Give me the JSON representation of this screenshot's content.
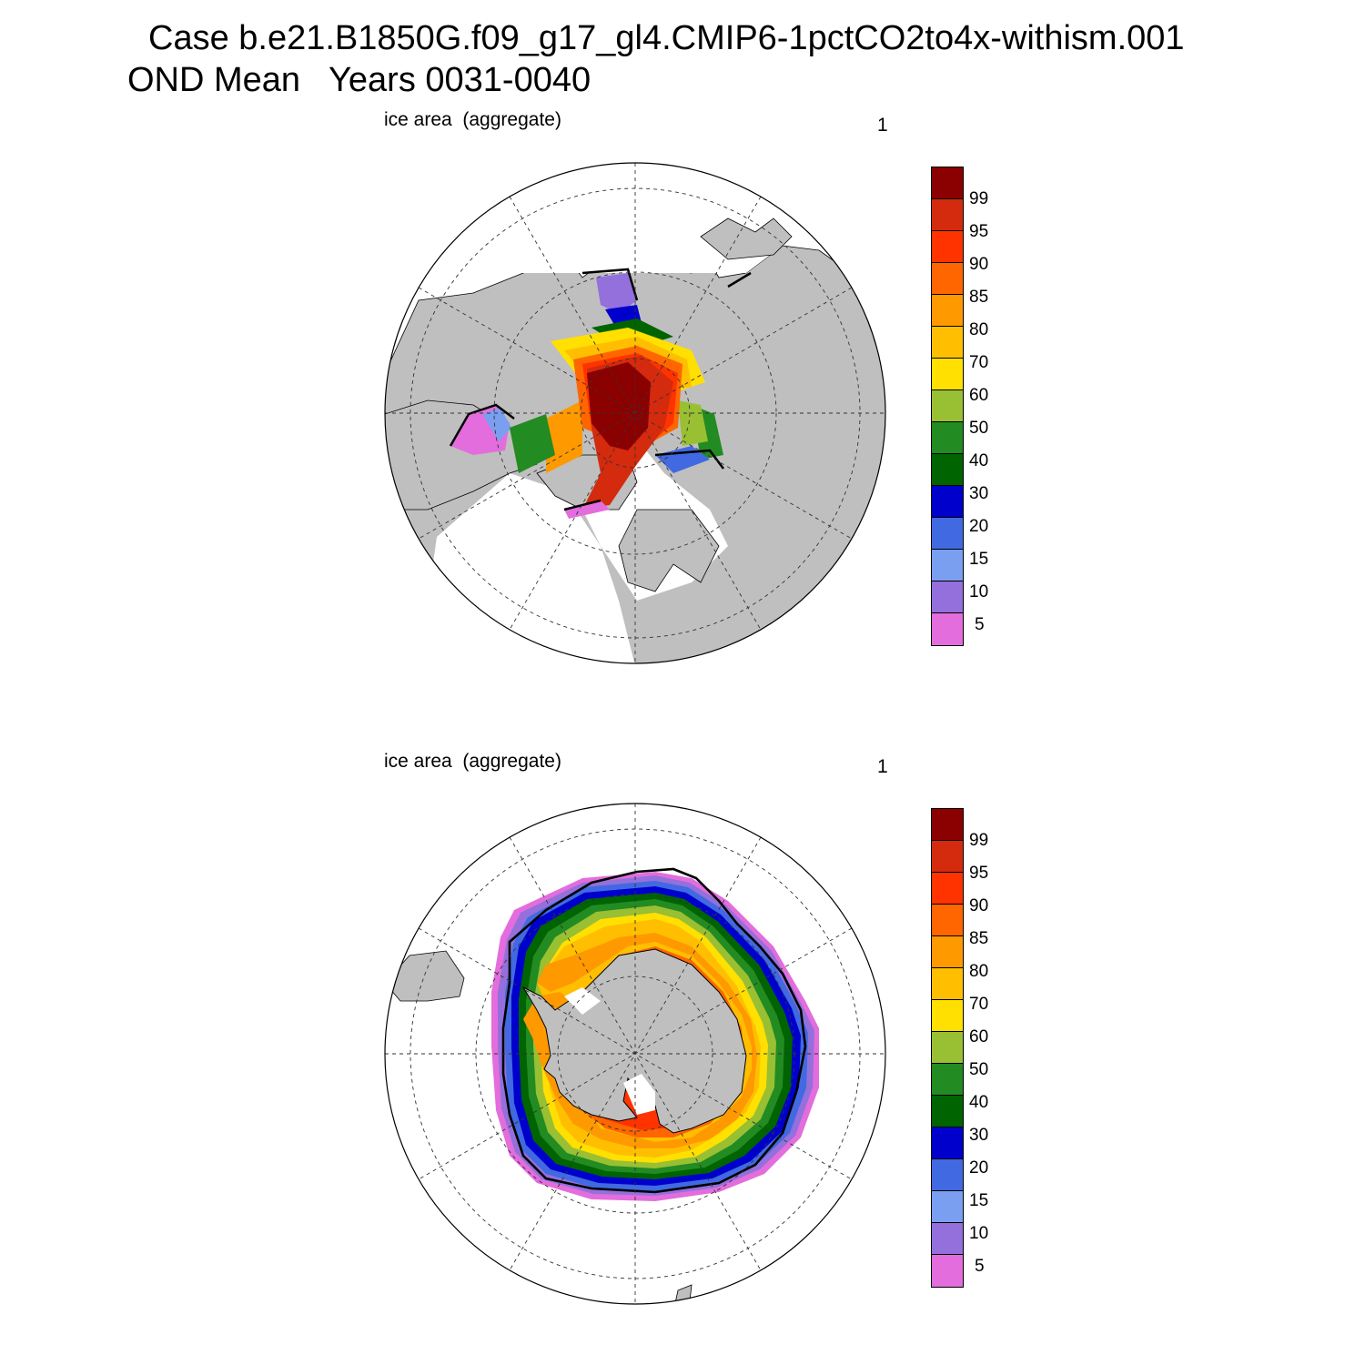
{
  "title": {
    "line1": "Case b.e21.B1850G.f09_g17_gl4.CMIP6-1pctCO2to4x-withism.001",
    "line2": "OND Mean   Years 0031-0040"
  },
  "panels": [
    {
      "label": "ice area  (aggregate)",
      "number": "1",
      "hemisphere": "north"
    },
    {
      "label": "ice area  (aggregate)",
      "number": "1",
      "hemisphere": "south"
    }
  ],
  "colorbar": {
    "labels": [
      "99",
      "95",
      "90",
      "85",
      "80",
      "70",
      "60",
      "50",
      "40",
      "30",
      "20",
      "15",
      "10",
      "5"
    ],
    "colors": [
      "#8b0000",
      "#d42a0e",
      "#ff3300",
      "#ff6600",
      "#ff9900",
      "#ffbf00",
      "#ffe000",
      "#99bf33",
      "#228b22",
      "#006400",
      "#0000cd",
      "#4169e1",
      "#7b9ff0",
      "#9370db",
      "#e36ddc"
    ]
  },
  "map_colors": {
    "land": "#bfbfbf",
    "ocean": "#ffffff",
    "extent_line": "#000000"
  }
}
